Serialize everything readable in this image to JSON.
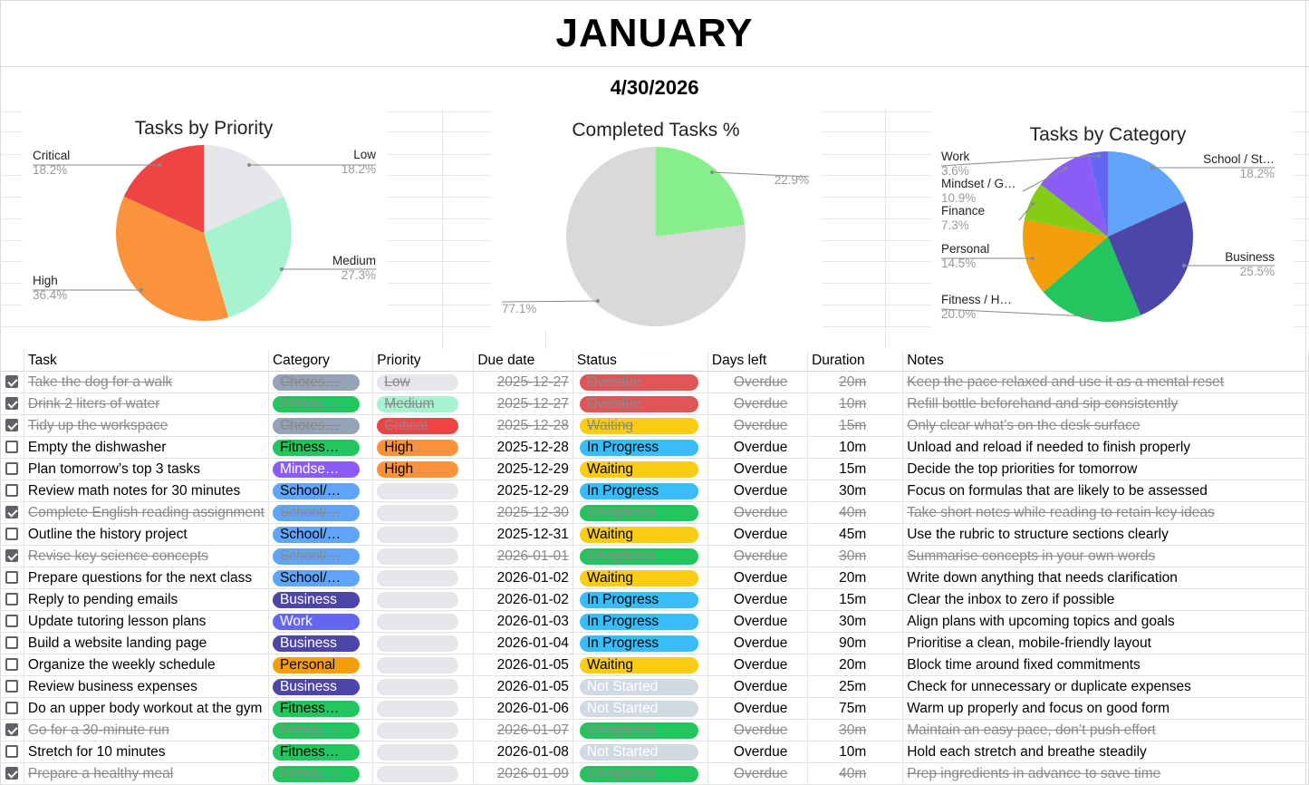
{
  "title": "JANUARY",
  "date": "4/30/2026",
  "colors": {
    "critical": "#ef4444",
    "high": "#fb923c",
    "medium": "#a7f3d0",
    "low": "#e5e7eb",
    "overdue": "#e05555",
    "waiting": "#facc15",
    "in_progress": "#38bdf8",
    "completed": "#22c55e",
    "not_started": "#d1d9e3",
    "chores": "#94a3b8",
    "fitness": "#22c55e",
    "mindset": "#8b5cf6",
    "school": "#60a5fa",
    "business": "#4c46a8",
    "work": "#6366f1",
    "personal": "#f59e0b",
    "finance": "#84cc16"
  },
  "chart_data": [
    {
      "type": "pie",
      "title": "Tasks by Priority",
      "slices": [
        {
          "label": "Low",
          "value": 18.2,
          "pct": "18.2%",
          "color": "#e5e7eb"
        },
        {
          "label": "Medium",
          "value": 27.3,
          "pct": "27.3%",
          "color": "#a7f3d0"
        },
        {
          "label": "High",
          "value": 36.4,
          "pct": "36.4%",
          "color": "#fb923c"
        },
        {
          "label": "Critical",
          "value": 18.2,
          "pct": "18.2%",
          "color": "#ef4444"
        }
      ]
    },
    {
      "type": "pie",
      "title": "Completed Tasks %",
      "slices": [
        {
          "label": "",
          "value": 22.9,
          "pct": "22.9%",
          "color": "#86ef8c"
        },
        {
          "label": "",
          "value": 77.1,
          "pct": "77.1%",
          "color": "#d9d9d9"
        }
      ]
    },
    {
      "type": "pie",
      "title": "Tasks by Category",
      "slices": [
        {
          "label": "School / St…",
          "value": 18.2,
          "pct": "18.2%",
          "color": "#60a5fa"
        },
        {
          "label": "Business",
          "value": 25.5,
          "pct": "25.5%",
          "color": "#4c46a8"
        },
        {
          "label": "Fitness / H…",
          "value": 20.0,
          "pct": "20.0%",
          "color": "#22c55e"
        },
        {
          "label": "Personal",
          "value": 14.5,
          "pct": "14.5%",
          "color": "#f59e0b"
        },
        {
          "label": "Finance",
          "value": 7.3,
          "pct": "7.3%",
          "color": "#84cc16"
        },
        {
          "label": "Mindset / G…",
          "value": 10.9,
          "pct": "10.9%",
          "color": "#8b5cf6"
        },
        {
          "label": "Work",
          "value": 3.6,
          "pct": "3.6%",
          "color": "#6366f1"
        }
      ]
    }
  ],
  "table": {
    "headers": {
      "task": "Task",
      "category": "Category",
      "priority": "Priority",
      "due": "Due date",
      "status": "Status",
      "days_left": "Days left",
      "duration": "Duration",
      "notes": "Notes"
    },
    "rows": [
      {
        "done": true,
        "task": "Take the dog for a walk",
        "category": "Chores…",
        "cat_color": "#94a3b8",
        "priority": "Low",
        "pri_color": "#e5e7eb",
        "due": "2025-12-27",
        "status": "Overdue",
        "status_color": "#e05555",
        "days_left": "Overdue",
        "duration": "20m",
        "notes": "Keep the pace relaxed and use it as a mental reset"
      },
      {
        "done": true,
        "task": "Drink 2 liters of water",
        "category": "Fitness…",
        "cat_color": "#22c55e",
        "priority": "Medium",
        "pri_color": "#a7f3d0",
        "due": "2025-12-27",
        "status": "Overdue",
        "status_color": "#e05555",
        "days_left": "Overdue",
        "duration": "10m",
        "notes": "Refill bottle beforehand and sip consistently"
      },
      {
        "done": true,
        "task": "Tidy up the workspace",
        "category": "Chores…",
        "cat_color": "#94a3b8",
        "priority": "Critical",
        "pri_color": "#ef4444",
        "due": "2025-12-28",
        "status": "Waiting",
        "status_color": "#facc15",
        "days_left": "Overdue",
        "duration": "15m",
        "notes": "Only clear what’s on the desk surface"
      },
      {
        "done": false,
        "task": "Empty the dishwasher",
        "category": "Fitness…",
        "cat_color": "#22c55e",
        "priority": "High",
        "pri_color": "#fb923c",
        "due": "2025-12-28",
        "status": "In Progress",
        "status_color": "#38bdf8",
        "days_left": "Overdue",
        "duration": "10m",
        "notes": "Unload and reload if needed to finish properly"
      },
      {
        "done": false,
        "task": "Plan tomorrow’s top 3 tasks",
        "category": "Mindse…",
        "cat_color": "#8b5cf6",
        "priority": "High",
        "pri_color": "#fb923c",
        "due": "2025-12-29",
        "status": "Waiting",
        "status_color": "#facc15",
        "days_left": "Overdue",
        "duration": "15m",
        "notes": "Decide the top priorities for tomorrow"
      },
      {
        "done": false,
        "task": "Review math notes for 30 minutes",
        "category": "School/…",
        "cat_color": "#60a5fa",
        "priority": "",
        "pri_color": "#e5e7eb",
        "due": "2025-12-29",
        "status": "In Progress",
        "status_color": "#38bdf8",
        "days_left": "Overdue",
        "duration": "30m",
        "notes": "Focus on formulas that are likely to be assessed"
      },
      {
        "done": true,
        "task": "Complete English reading assignment",
        "category": "School/…",
        "cat_color": "#60a5fa",
        "priority": "",
        "pri_color": "#e5e7eb",
        "due": "2025-12-30",
        "status": "Completed",
        "status_color": "#22c55e",
        "days_left": "Overdue",
        "duration": "40m",
        "notes": "Take short notes while reading to retain key ideas"
      },
      {
        "done": false,
        "task": "Outline the history project",
        "category": "School/…",
        "cat_color": "#60a5fa",
        "priority": "",
        "pri_color": "#e5e7eb",
        "due": "2025-12-31",
        "status": "Waiting",
        "status_color": "#facc15",
        "days_left": "Overdue",
        "duration": "45m",
        "notes": "Use the rubric to structure sections clearly"
      },
      {
        "done": true,
        "task": "Revise key science concepts",
        "category": "School/…",
        "cat_color": "#60a5fa",
        "priority": "",
        "pri_color": "#e5e7eb",
        "due": "2026-01-01",
        "status": "Completed",
        "status_color": "#22c55e",
        "days_left": "Overdue",
        "duration": "30m",
        "notes": "Summarise concepts in your own words"
      },
      {
        "done": false,
        "task": "Prepare questions for the next class",
        "category": "School/…",
        "cat_color": "#60a5fa",
        "priority": "",
        "pri_color": "#e5e7eb",
        "due": "2026-01-02",
        "status": "Waiting",
        "status_color": "#facc15",
        "days_left": "Overdue",
        "duration": "20m",
        "notes": "Write down anything that needs clarification"
      },
      {
        "done": false,
        "task": "Reply to pending emails",
        "category": "Business",
        "cat_color": "#4c46a8",
        "priority": "",
        "pri_color": "#e5e7eb",
        "due": "2026-01-02",
        "status": "In Progress",
        "status_color": "#38bdf8",
        "days_left": "Overdue",
        "duration": "15m",
        "notes": "Clear the inbox to zero if possible"
      },
      {
        "done": false,
        "task": "Update tutoring lesson plans",
        "category": "Work",
        "cat_color": "#6366f1",
        "priority": "",
        "pri_color": "#e5e7eb",
        "due": "2026-01-03",
        "status": "In Progress",
        "status_color": "#38bdf8",
        "days_left": "Overdue",
        "duration": "30m",
        "notes": "Align plans with upcoming topics and goals"
      },
      {
        "done": false,
        "task": "Build a website landing page",
        "category": "Business",
        "cat_color": "#4c46a8",
        "priority": "",
        "pri_color": "#e5e7eb",
        "due": "2026-01-04",
        "status": "In Progress",
        "status_color": "#38bdf8",
        "days_left": "Overdue",
        "duration": "90m",
        "notes": "Prioritise a clean, mobile-friendly layout"
      },
      {
        "done": false,
        "task": "Organize the weekly schedule",
        "category": "Personal",
        "cat_color": "#f59e0b",
        "priority": "",
        "pri_color": "#e5e7eb",
        "due": "2026-01-05",
        "status": "Waiting",
        "status_color": "#facc15",
        "days_left": "Overdue",
        "duration": "20m",
        "notes": "Block time around fixed commitments"
      },
      {
        "done": false,
        "task": "Review business expenses",
        "category": "Business",
        "cat_color": "#4c46a8",
        "priority": "",
        "pri_color": "#e5e7eb",
        "due": "2026-01-05",
        "status": "Not Started",
        "status_color": "#d1d9e3",
        "days_left": "Overdue",
        "duration": "25m",
        "notes": "Check for unnecessary or duplicate expenses"
      },
      {
        "done": false,
        "task": "Do an upper body workout at the gym",
        "category": "Fitness…",
        "cat_color": "#22c55e",
        "priority": "",
        "pri_color": "#e5e7eb",
        "due": "2026-01-06",
        "status": "Not Started",
        "status_color": "#d1d9e3",
        "days_left": "Overdue",
        "duration": "75m",
        "notes": "Warm up properly and focus on good form"
      },
      {
        "done": true,
        "task": "Go for a 30-minute run",
        "category": "Fitness…",
        "cat_color": "#22c55e",
        "priority": "",
        "pri_color": "#e5e7eb",
        "due": "2026-01-07",
        "status": "Completed",
        "status_color": "#22c55e",
        "days_left": "Overdue",
        "duration": "30m",
        "notes": "Maintain an easy pace, don’t push effort"
      },
      {
        "done": false,
        "task": "Stretch for 10 minutes",
        "category": "Fitness…",
        "cat_color": "#22c55e",
        "priority": "",
        "pri_color": "#e5e7eb",
        "due": "2026-01-08",
        "status": "Not Started",
        "status_color": "#d1d9e3",
        "days_left": "Overdue",
        "duration": "10m",
        "notes": "Hold each stretch and breathe steadily"
      },
      {
        "done": true,
        "task": "Prepare a healthy meal",
        "category": "Fitness…",
        "cat_color": "#22c55e",
        "priority": "",
        "pri_color": "#e5e7eb",
        "due": "2026-01-09",
        "status": "Completed",
        "status_color": "#22c55e",
        "days_left": "Overdue",
        "duration": "40m",
        "notes": "Prep ingredients in advance to save time"
      }
    ]
  }
}
